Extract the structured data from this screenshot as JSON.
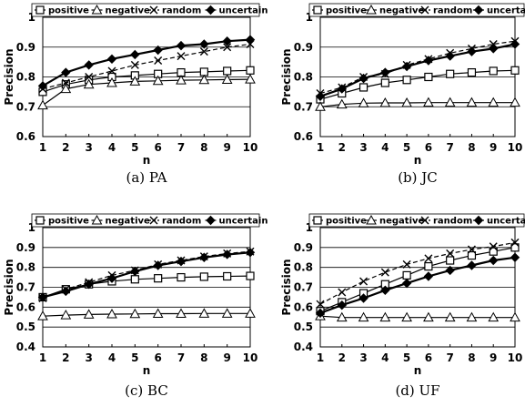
{
  "chart_data": [
    {
      "type": "line",
      "caption": "(a) PA",
      "xlabel": "n",
      "ylabel": "Precision",
      "x": [
        1,
        2,
        3,
        4,
        5,
        6,
        7,
        8,
        9,
        10
      ],
      "ylim": [
        0.6,
        1.0
      ],
      "yticks": [
        "0.6",
        "0.7",
        "0.8",
        "0.9",
        "1"
      ],
      "legend_position": "top",
      "series": [
        {
          "name": "positive",
          "marker": "square",
          "dash": false,
          "values": [
            0.75,
            0.775,
            0.79,
            0.8,
            0.805,
            0.81,
            0.815,
            0.817,
            0.82,
            0.822
          ]
        },
        {
          "name": "negative",
          "marker": "triangle",
          "dash": false,
          "values": [
            0.705,
            0.76,
            0.775,
            0.78,
            0.785,
            0.787,
            0.789,
            0.79,
            0.791,
            0.792
          ]
        },
        {
          "name": "random",
          "marker": "x",
          "dash": true,
          "values": [
            0.76,
            0.78,
            0.8,
            0.82,
            0.84,
            0.855,
            0.87,
            0.885,
            0.9,
            0.91
          ]
        },
        {
          "name": "uncertain",
          "marker": "diamond",
          "dash": false,
          "values": [
            0.77,
            0.815,
            0.84,
            0.86,
            0.875,
            0.89,
            0.905,
            0.91,
            0.92,
            0.925
          ]
        }
      ]
    },
    {
      "type": "line",
      "caption": "(b) JC",
      "xlabel": "n",
      "ylabel": "Precision",
      "x": [
        1,
        2,
        3,
        4,
        5,
        6,
        7,
        8,
        9,
        10
      ],
      "ylim": [
        0.6,
        1.0
      ],
      "yticks": [
        "0.6",
        "0.7",
        "0.8",
        "0.9",
        "1"
      ],
      "legend_position": "top",
      "series": [
        {
          "name": "positive",
          "marker": "square",
          "dash": false,
          "values": [
            0.725,
            0.745,
            0.765,
            0.78,
            0.79,
            0.8,
            0.81,
            0.815,
            0.82,
            0.822
          ]
        },
        {
          "name": "negative",
          "marker": "triangle",
          "dash": false,
          "values": [
            0.7,
            0.708,
            0.712,
            0.713,
            0.713,
            0.714,
            0.714,
            0.714,
            0.714,
            0.714
          ]
        },
        {
          "name": "random",
          "marker": "x",
          "dash": true,
          "values": [
            0.745,
            0.765,
            0.8,
            0.81,
            0.84,
            0.86,
            0.88,
            0.895,
            0.91,
            0.92
          ]
        },
        {
          "name": "uncertain",
          "marker": "diamond",
          "dash": false,
          "values": [
            0.735,
            0.76,
            0.795,
            0.815,
            0.835,
            0.855,
            0.87,
            0.885,
            0.895,
            0.91
          ]
        }
      ]
    },
    {
      "type": "line",
      "caption": "(c) BC",
      "xlabel": "n",
      "ylabel": "Precision",
      "x": [
        1,
        2,
        3,
        4,
        5,
        6,
        7,
        8,
        9,
        10
      ],
      "ylim": [
        0.4,
        1.0
      ],
      "yticks": [
        "0.4",
        "0.5",
        "0.6",
        "0.7",
        "0.8",
        "0.9",
        "1"
      ],
      "legend_position": "top",
      "series": [
        {
          "name": "positive",
          "marker": "square",
          "dash": false,
          "values": [
            0.65,
            0.69,
            0.715,
            0.73,
            0.74,
            0.745,
            0.75,
            0.753,
            0.755,
            0.757
          ]
        },
        {
          "name": "negative",
          "marker": "triangle",
          "dash": false,
          "values": [
            0.555,
            0.56,
            0.563,
            0.565,
            0.566,
            0.567,
            0.567,
            0.568,
            0.568,
            0.568
          ]
        },
        {
          "name": "random",
          "marker": "x",
          "dash": true,
          "values": [
            0.645,
            0.69,
            0.725,
            0.76,
            0.785,
            0.815,
            0.835,
            0.855,
            0.87,
            0.88
          ]
        },
        {
          "name": "uncertain",
          "marker": "diamond",
          "dash": false,
          "values": [
            0.65,
            0.68,
            0.715,
            0.745,
            0.78,
            0.81,
            0.83,
            0.85,
            0.865,
            0.875
          ]
        }
      ]
    },
    {
      "type": "line",
      "caption": "(d) UF",
      "xlabel": "n",
      "ylabel": "Precision",
      "x": [
        1,
        2,
        3,
        4,
        5,
        6,
        7,
        8,
        9,
        10
      ],
      "ylim": [
        0.4,
        1.0
      ],
      "yticks": [
        "0.4",
        "0.5",
        "0.6",
        "0.7",
        "0.8",
        "0.9",
        "1"
      ],
      "legend_position": "top",
      "series": [
        {
          "name": "positive",
          "marker": "square",
          "dash": false,
          "values": [
            0.58,
            0.625,
            0.67,
            0.715,
            0.76,
            0.805,
            0.835,
            0.86,
            0.88,
            0.9
          ]
        },
        {
          "name": "negative",
          "marker": "triangle",
          "dash": false,
          "values": [
            0.555,
            0.548,
            0.548,
            0.548,
            0.548,
            0.548,
            0.548,
            0.548,
            0.548,
            0.548
          ]
        },
        {
          "name": "random",
          "marker": "x",
          "dash": true,
          "values": [
            0.615,
            0.675,
            0.73,
            0.775,
            0.815,
            0.845,
            0.87,
            0.89,
            0.905,
            0.925
          ]
        },
        {
          "name": "uncertain",
          "marker": "diamond",
          "dash": false,
          "values": [
            0.57,
            0.61,
            0.645,
            0.685,
            0.72,
            0.755,
            0.785,
            0.81,
            0.835,
            0.85
          ]
        }
      ]
    }
  ]
}
